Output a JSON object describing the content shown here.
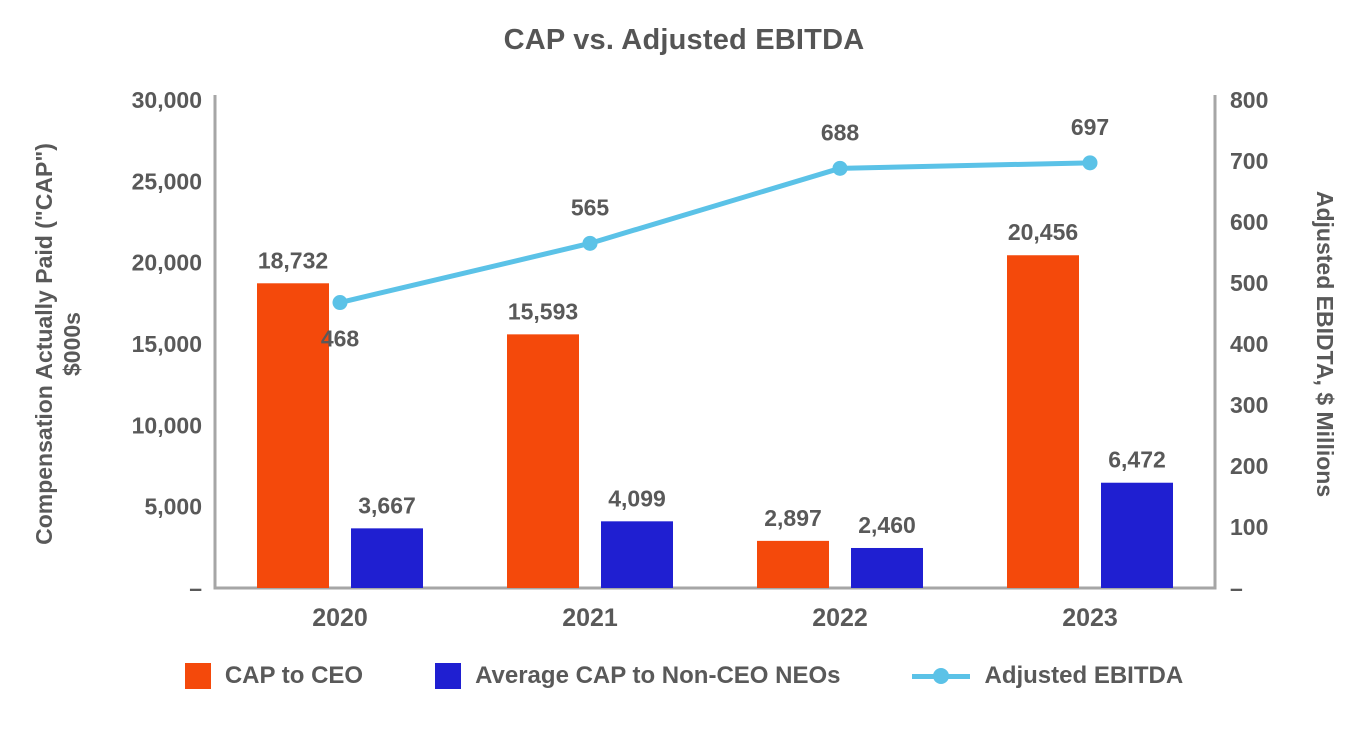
{
  "chart_data": {
    "type": "combo-bar-line",
    "title": "CAP vs. Adjusted EBITDA",
    "categories": [
      "2020",
      "2021",
      "2022",
      "2023"
    ],
    "series": [
      {
        "name": "CAP to CEO",
        "type": "bar",
        "axis": "left",
        "color": "#F4490B",
        "values": [
          18732,
          15593,
          2897,
          20456
        ],
        "labels": [
          "18,732",
          "15,593",
          "2,897",
          "20,456"
        ]
      },
      {
        "name": "Average CAP to Non-CEO NEOs",
        "type": "bar",
        "axis": "left",
        "color": "#1F1FD1",
        "values": [
          3667,
          4099,
          2460,
          6472
        ],
        "labels": [
          "3,667",
          "4,099",
          "2,460",
          "6,472"
        ]
      },
      {
        "name": "Adjusted EBITDA",
        "type": "line",
        "axis": "right",
        "color": "#5BC2E7",
        "values": [
          468,
          565,
          688,
          697
        ],
        "labels": [
          "468",
          "565",
          "688",
          "697"
        ],
        "label_positions": [
          "below",
          "above",
          "above",
          "above"
        ]
      }
    ],
    "left_axis": {
      "title_line1": "Compensation Actually Paid (\"CAP\")",
      "title_line2": "$000s",
      "min": 0,
      "max": 30000,
      "step": 5000,
      "tick_labels": [
        "–",
        "5,000",
        "10,000",
        "15,000",
        "20,000",
        "25,000",
        "30,000"
      ]
    },
    "right_axis": {
      "title": "Adjusted EBIDTA, $ Millions",
      "min": 0,
      "max": 800,
      "step": 100,
      "tick_labels": [
        "–",
        "100",
        "200",
        "300",
        "400",
        "500",
        "600",
        "700",
        "800"
      ]
    },
    "legend": [
      "CAP to CEO",
      "Average CAP to Non-CEO NEOs",
      "Adjusted EBITDA"
    ],
    "colors": {
      "bar_ceo": "#F4490B",
      "bar_neo": "#1F1FD1",
      "line_ebitda": "#5BC2E7",
      "text": "#595959",
      "axis": "#A6A6A6"
    },
    "grid": "off",
    "legend_position": "bottom"
  }
}
